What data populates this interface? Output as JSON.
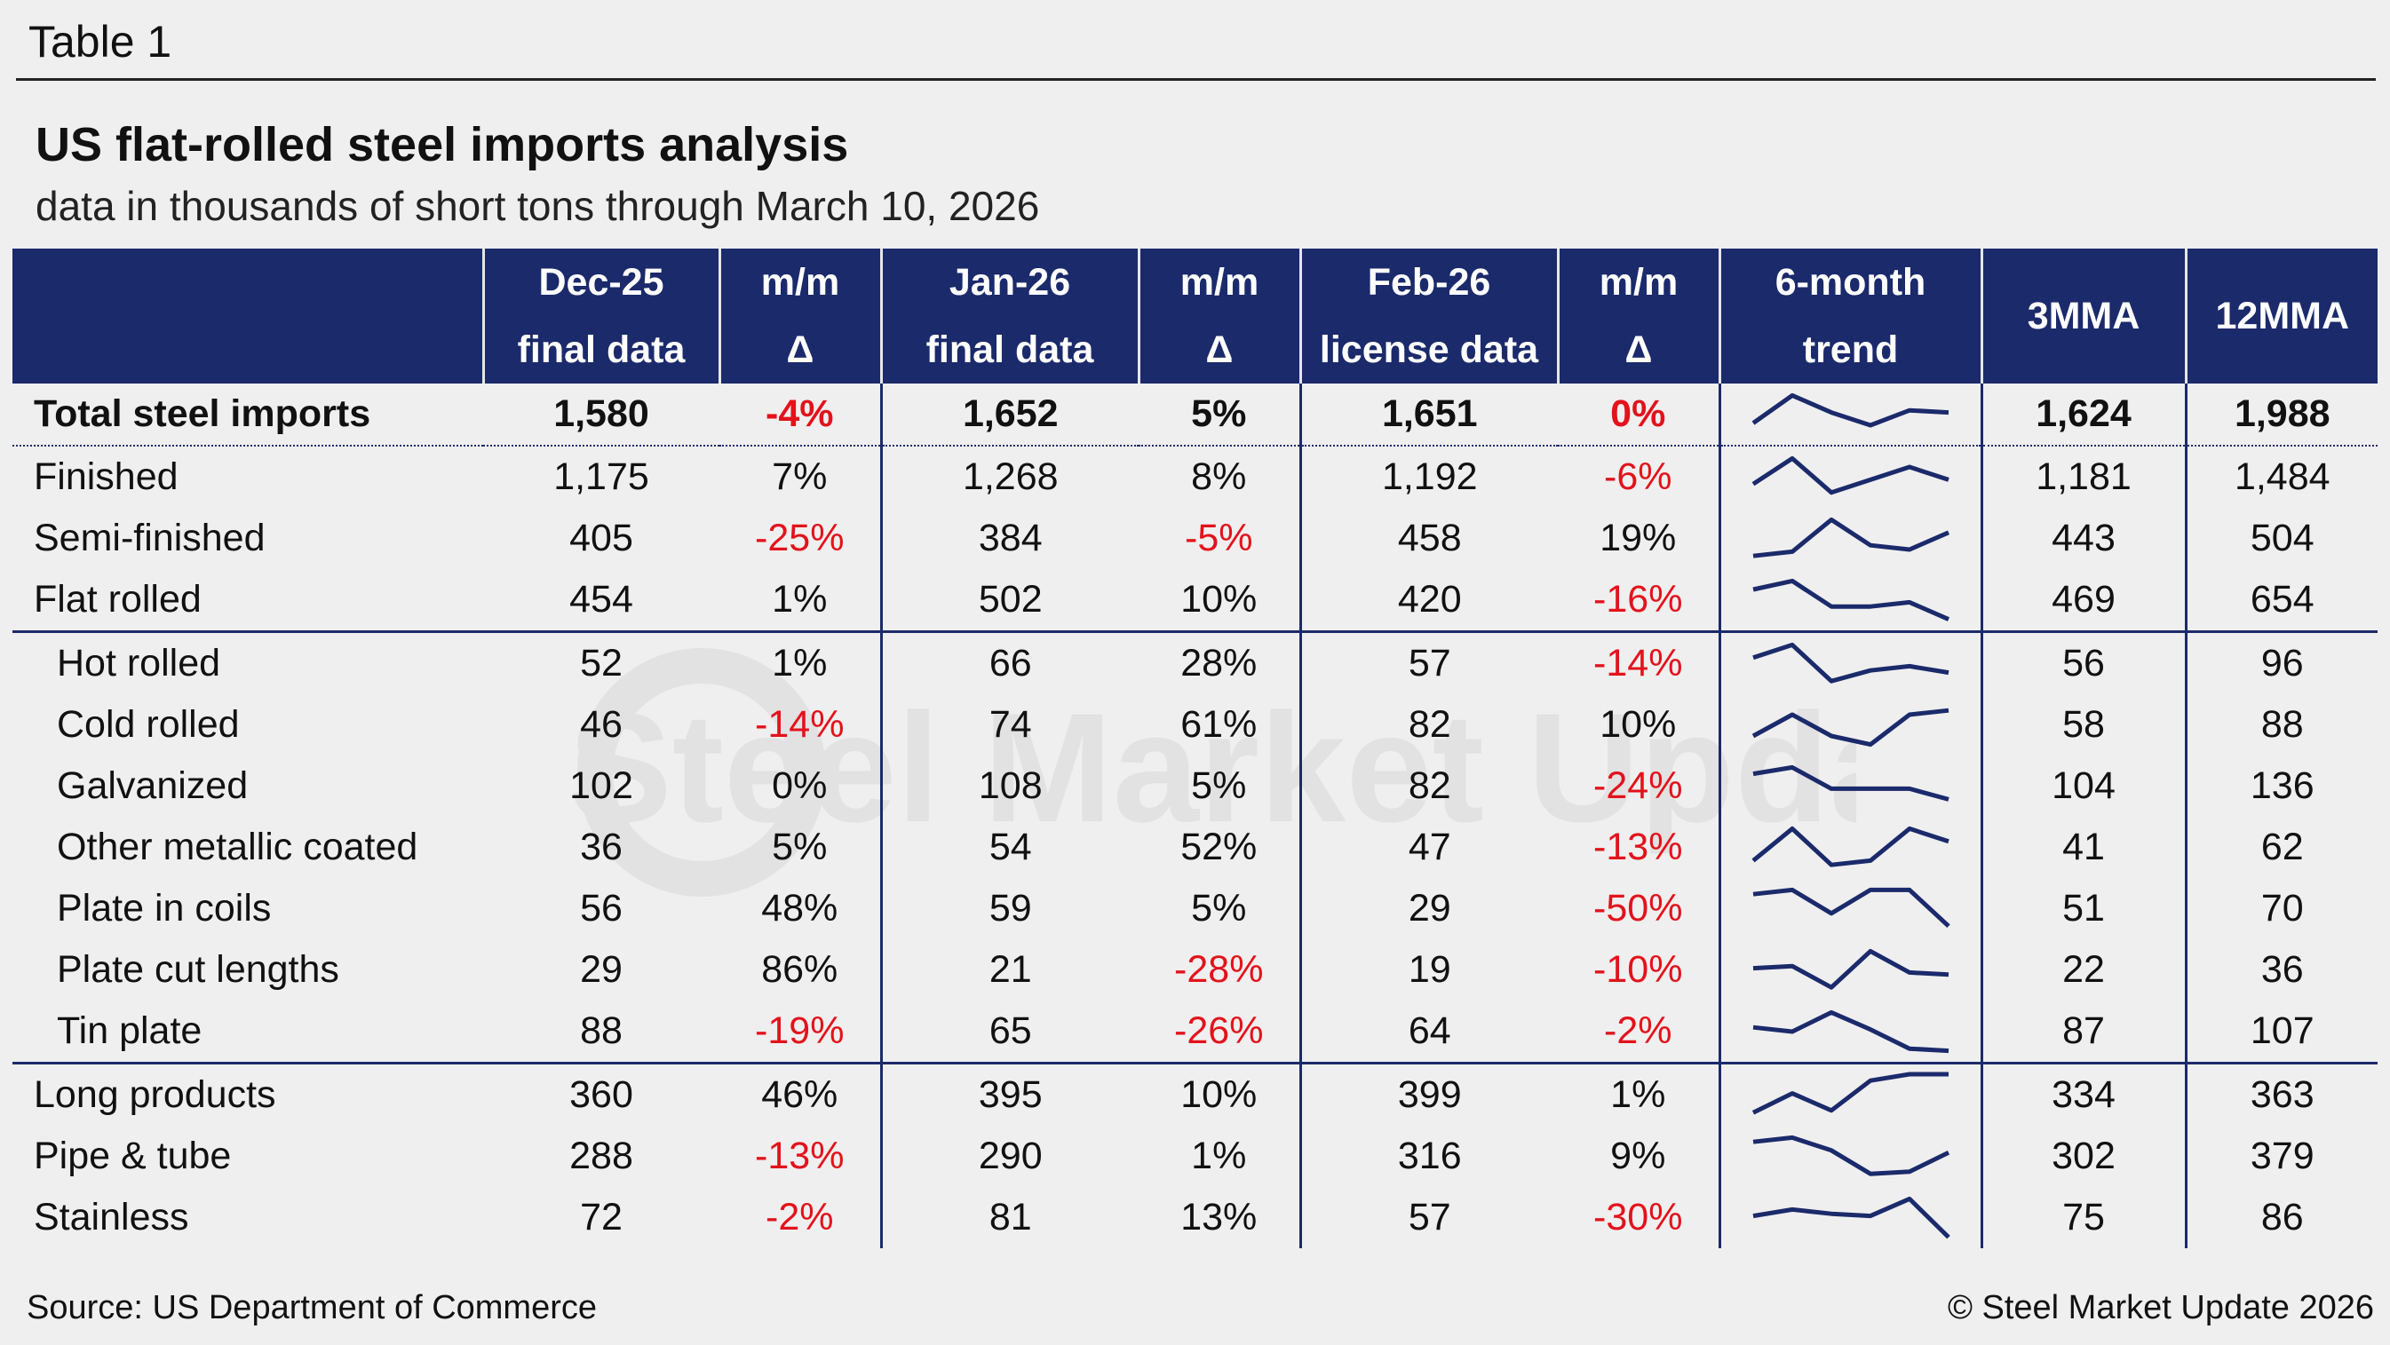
{
  "header": {
    "table_label": "Table 1",
    "title": "US flat-rolled steel imports analysis",
    "subtitle": "data in thousands of short tons through March 10, 2026"
  },
  "columns": [
    {
      "line1": "Dec-25",
      "line2": "final data"
    },
    {
      "line1": "m/m",
      "line2": "Δ"
    },
    {
      "line1": "Jan-26",
      "line2": "final data"
    },
    {
      "line1": "m/m",
      "line2": "Δ"
    },
    {
      "line1": "Feb-26",
      "line2": "license data"
    },
    {
      "line1": "m/m",
      "line2": "Δ"
    },
    {
      "line1": "6-month",
      "line2": "trend"
    },
    {
      "line1": "3MMA",
      "line2": ""
    },
    {
      "line1": "12MMA",
      "line2": ""
    }
  ],
  "rows": [
    {
      "label": "Total steel imports",
      "dec": "1,580",
      "dec_mm": "-4%",
      "jan": "1,652",
      "jan_mm": "5%",
      "feb": "1,651",
      "feb_mm": "0%",
      "mma3": "1,624",
      "mma12": "1,988",
      "trend": [
        0.3,
        0.95,
        0.55,
        0.25,
        0.6,
        0.55
      ]
    },
    {
      "label": "Finished",
      "dec": "1,175",
      "dec_mm": "7%",
      "jan": "1,268",
      "jan_mm": "8%",
      "feb": "1,192",
      "feb_mm": "-6%",
      "mma3": "1,181",
      "mma12": "1,484",
      "trend": [
        0.35,
        0.95,
        0.15,
        0.45,
        0.75,
        0.45
      ]
    },
    {
      "label": "Semi-finished",
      "dec": "405",
      "dec_mm": "-25%",
      "jan": "384",
      "jan_mm": "-5%",
      "feb": "458",
      "feb_mm": "19%",
      "mma3": "443",
      "mma12": "504",
      "trend": [
        0.1,
        0.2,
        0.95,
        0.35,
        0.25,
        0.65
      ]
    },
    {
      "label": "Flat rolled",
      "dec": "454",
      "dec_mm": "1%",
      "jan": "502",
      "jan_mm": "10%",
      "feb": "420",
      "feb_mm": "-16%",
      "mma3": "469",
      "mma12": "654",
      "trend": [
        0.75,
        0.95,
        0.35,
        0.35,
        0.45,
        0.05
      ]
    },
    {
      "label": "Hot rolled",
      "dec": "52",
      "dec_mm": "1%",
      "jan": "66",
      "jan_mm": "28%",
      "feb": "57",
      "feb_mm": "-14%",
      "mma3": "56",
      "mma12": "96",
      "trend": [
        0.65,
        0.95,
        0.1,
        0.35,
        0.45,
        0.3
      ],
      "indent": true
    },
    {
      "label": "Cold rolled",
      "dec": "46",
      "dec_mm": "-14%",
      "jan": "74",
      "jan_mm": "61%",
      "feb": "82",
      "feb_mm": "10%",
      "mma3": "58",
      "mma12": "88",
      "trend": [
        0.25,
        0.75,
        0.25,
        0.05,
        0.75,
        0.85
      ],
      "indent": true
    },
    {
      "label": "Galvanized",
      "dec": "102",
      "dec_mm": "0%",
      "jan": "108",
      "jan_mm": "5%",
      "feb": "82",
      "feb_mm": "-24%",
      "mma3": "104",
      "mma12": "136",
      "trend": [
        0.8,
        0.95,
        0.45,
        0.45,
        0.45,
        0.2
      ],
      "indent": true
    },
    {
      "label": "Other metallic coated",
      "dec": "36",
      "dec_mm": "5%",
      "jan": "54",
      "jan_mm": "52%",
      "feb": "47",
      "feb_mm": "-13%",
      "mma3": "41",
      "mma12": "62",
      "trend": [
        0.2,
        0.95,
        0.1,
        0.2,
        0.95,
        0.65
      ],
      "indent": true
    },
    {
      "label": "Plate in coils",
      "dec": "56",
      "dec_mm": "48%",
      "jan": "59",
      "jan_mm": "5%",
      "feb": "29",
      "feb_mm": "-50%",
      "mma3": "51",
      "mma12": "70",
      "trend": [
        0.85,
        0.95,
        0.4,
        0.95,
        0.95,
        0.1
      ],
      "indent": true
    },
    {
      "label": "Plate cut lengths",
      "dec": "29",
      "dec_mm": "86%",
      "jan": "21",
      "jan_mm": "-28%",
      "feb": "19",
      "feb_mm": "-10%",
      "mma3": "22",
      "mma12": "36",
      "trend": [
        0.55,
        0.6,
        0.1,
        0.95,
        0.45,
        0.4
      ],
      "indent": true
    },
    {
      "label": "Tin plate",
      "dec": "88",
      "dec_mm": "-19%",
      "jan": "65",
      "jan_mm": "-26%",
      "feb": "64",
      "feb_mm": "-2%",
      "mma3": "87",
      "mma12": "107",
      "trend": [
        0.6,
        0.5,
        0.95,
        0.55,
        0.1,
        0.05
      ],
      "indent": true
    },
    {
      "label": "Long products",
      "dec": "360",
      "dec_mm": "46%",
      "jan": "395",
      "jan_mm": "10%",
      "feb": "399",
      "feb_mm": "1%",
      "mma3": "334",
      "mma12": "363",
      "trend": [
        0.1,
        0.55,
        0.15,
        0.85,
        1.0,
        1.0
      ]
    },
    {
      "label": "Pipe & tube",
      "dec": "288",
      "dec_mm": "-13%",
      "jan": "290",
      "jan_mm": "1%",
      "feb": "316",
      "feb_mm": "9%",
      "mma3": "302",
      "mma12": "379",
      "trend": [
        0.85,
        0.95,
        0.65,
        0.1,
        0.15,
        0.6
      ]
    },
    {
      "label": "Stainless",
      "dec": "72",
      "dec_mm": "-2%",
      "jan": "81",
      "jan_mm": "13%",
      "feb": "57",
      "feb_mm": "-30%",
      "mma3": "75",
      "mma12": "86",
      "trend": [
        0.55,
        0.7,
        0.6,
        0.55,
        0.95,
        0.05
      ]
    }
  ],
  "footer": {
    "source": "Source: US Department of Commerce",
    "copyright": "© Steel Market Update 2026"
  },
  "colors": {
    "header_bg": "#1b2a6b",
    "negative": "#e3121b",
    "sparkline": "#1b2a6b"
  },
  "watermark_text": "Steel Market Update"
}
